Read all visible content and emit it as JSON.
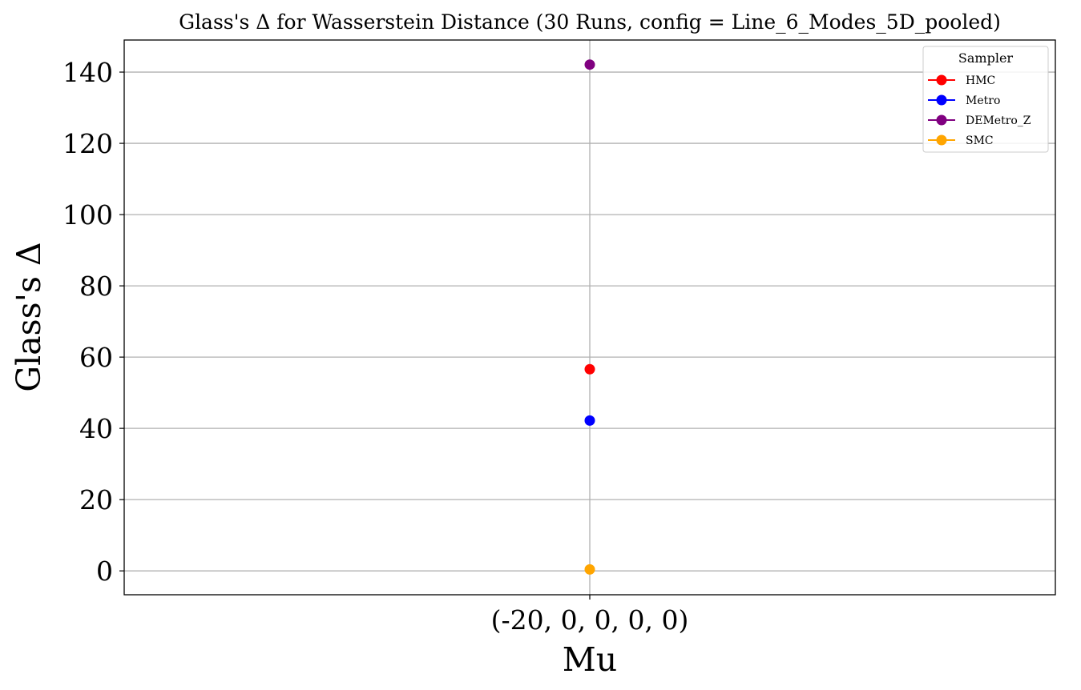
{
  "chart_data": {
    "type": "scatter",
    "title": "Glass's Δ for Wasserstein Distance (30 Runs, config = Line_6_Modes_5D_pooled)",
    "xlabel": "Mu",
    "ylabel": "Glass's Δ",
    "categories": [
      "(-20, 0, 0, 0, 0)"
    ],
    "ylim": [
      -6.7,
      149
    ],
    "yticks": [
      0,
      20,
      40,
      60,
      80,
      100,
      120,
      140
    ],
    "grid": true,
    "legend": {
      "title": "Sampler",
      "placement": "top-right"
    },
    "series": [
      {
        "name": "HMC",
        "color": "#ff0000",
        "values": [
          56.6
        ]
      },
      {
        "name": "Metro",
        "color": "#0000ff",
        "values": [
          42.2
        ]
      },
      {
        "name": "DEMetro_Z",
        "color": "#800080",
        "values": [
          142.1
        ]
      },
      {
        "name": "SMC",
        "color": "#ffa500",
        "values": [
          0.4
        ]
      }
    ]
  }
}
